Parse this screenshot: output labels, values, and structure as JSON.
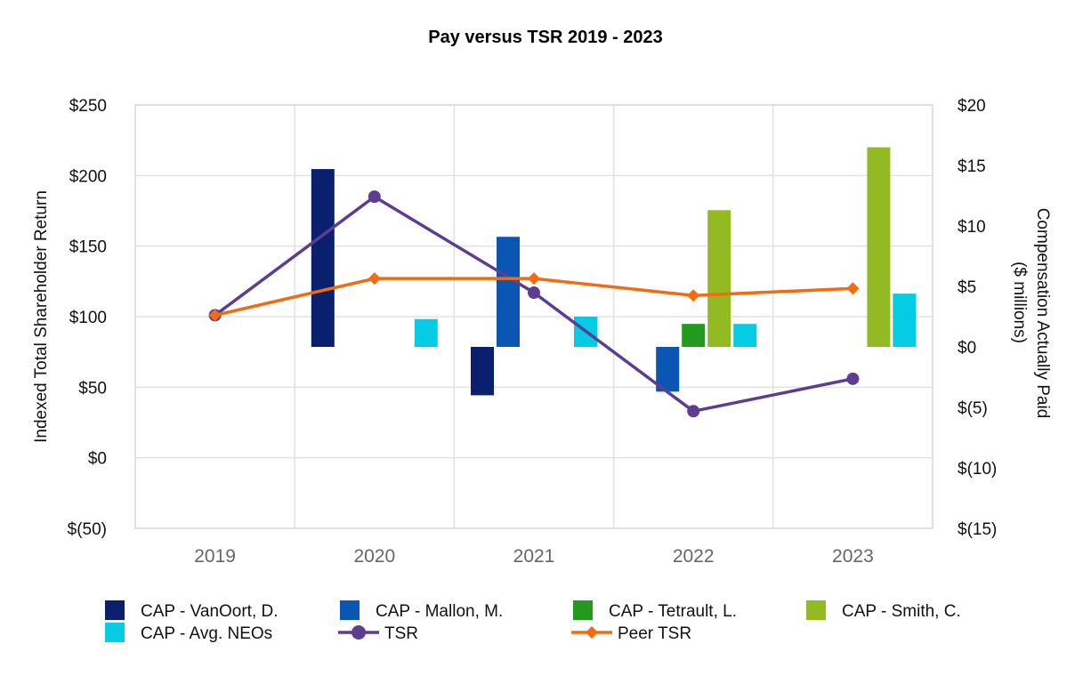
{
  "chart_data": {
    "type": "bar",
    "title": "Pay versus TSR 2019 - 2023",
    "categories": [
      "2019",
      "2020",
      "2021",
      "2022",
      "2023"
    ],
    "ylabel_left": "Indexed Total Shareholder Return",
    "ylabel_right_line1": "Compensation Actually Paid",
    "ylabel_right_line2": "($ millions)",
    "ylim_left": [
      -50,
      250
    ],
    "ylim_right": [
      -15,
      20
    ],
    "left_ticks": [
      250,
      200,
      150,
      100,
      50,
      0,
      -50
    ],
    "left_tick_labels": [
      "$250",
      "$200",
      "$150",
      "$100",
      "$50",
      "$0",
      "$(50)"
    ],
    "right_ticks": [
      20,
      15,
      10,
      5,
      0,
      -5,
      -10,
      -15
    ],
    "right_tick_labels": [
      "$20",
      "$15",
      "$10",
      "$5",
      "$0",
      "$(5)",
      "$(10)",
      "$(15)"
    ],
    "bar_series": [
      {
        "name": "CAP - VanOort, D.",
        "color": "#0a1f6e",
        "values": [
          null,
          14.7,
          -4.0,
          null,
          null
        ]
      },
      {
        "name": "CAP - Mallon, M.",
        "color": "#0b55b3",
        "values": [
          null,
          null,
          9.1,
          -3.7,
          null
        ]
      },
      {
        "name": "CAP - Tetrault, L.",
        "color": "#23991e",
        "values": [
          null,
          null,
          null,
          1.9,
          null
        ]
      },
      {
        "name": "CAP - Smith, C.",
        "color": "#93ba22",
        "values": [
          null,
          null,
          null,
          11.3,
          16.5
        ]
      },
      {
        "name": "CAP - Avg. NEOs",
        "color": "#05cbe5",
        "values": [
          null,
          2.3,
          2.5,
          1.9,
          4.4
        ]
      }
    ],
    "line_series": [
      {
        "name": "TSR",
        "color": "#5c3d91",
        "marker": "circle",
        "values": [
          101,
          185,
          117,
          33,
          56
        ]
      },
      {
        "name": "Peer TSR",
        "color": "#f26b10",
        "marker": "diamond",
        "values": [
          101,
          127,
          127,
          115,
          120
        ]
      }
    ]
  }
}
